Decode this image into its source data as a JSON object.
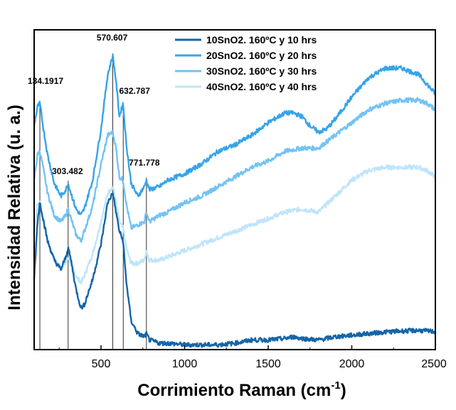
{
  "chart_data": {
    "type": "line",
    "title": "",
    "xlabel": "Corrimiento Raman (cm",
    "xlabel_sup": "-1",
    "xlabel_end": ")",
    "ylabel": "Intensidad Relativa (u. a.)",
    "xlim": [
      100,
      2500
    ],
    "ylim": [
      0,
      100
    ],
    "xticks": [
      500,
      1000,
      1500,
      2000,
      2500
    ],
    "xtick_labels": [
      "500",
      "1000",
      "1500",
      "2000",
      "2500"
    ],
    "yticks_shown": false,
    "grid": false,
    "legend_position": "top-right",
    "peak_lines": [
      134.1917,
      303.482,
      570.607,
      632.787,
      771.778
    ],
    "peak_labels": [
      {
        "text": "134.1917",
        "x": 134.1917
      },
      {
        "text": "303.482",
        "x": 303.482
      },
      {
        "text": "570.607",
        "x": 570.607
      },
      {
        "text": "632.787",
        "x": 632.787
      },
      {
        "text": "771.778",
        "x": 771.778
      }
    ],
    "series": [
      {
        "name": "10SnO2. 160ºC y 10 hrs",
        "color": "#1565a8",
        "x": [
          100,
          120,
          134,
          150,
          180,
          220,
          260,
          290,
          303,
          320,
          350,
          380,
          400,
          450,
          500,
          540,
          570,
          590,
          610,
          632,
          650,
          680,
          720,
          760,
          771,
          790,
          850,
          900,
          1000,
          1100,
          1200,
          1300,
          1400,
          1500,
          1600,
          1650,
          1700,
          1800,
          1900,
          2000,
          2100,
          2200,
          2300,
          2400,
          2500
        ],
        "y": [
          22,
          40,
          46,
          42,
          34,
          28,
          25,
          29,
          32,
          28,
          19,
          13,
          14,
          22,
          33,
          46,
          49,
          43,
          37,
          34,
          22,
          9,
          5,
          4,
          5,
          3,
          2,
          2,
          1.5,
          1.5,
          1.5,
          2,
          3,
          3,
          3.5,
          4,
          3.5,
          3,
          4,
          4.5,
          5,
          5.5,
          5.8,
          6,
          5.6
        ]
      },
      {
        "name": "20SnO2. 160ºC y 20 hrs",
        "color": "#36a4e8",
        "x": [
          100,
          120,
          134,
          150,
          180,
          220,
          260,
          290,
          303,
          320,
          350,
          380,
          400,
          450,
          500,
          540,
          570,
          590,
          610,
          632,
          650,
          680,
          720,
          760,
          771,
          790,
          850,
          900,
          1000,
          1100,
          1200,
          1300,
          1400,
          1500,
          1600,
          1650,
          1700,
          1750,
          1800,
          1850,
          1900,
          2000,
          2100,
          2200,
          2300,
          2400,
          2450,
          2500
        ],
        "y": [
          70,
          76,
          77,
          71,
          61,
          52,
          48,
          50,
          52,
          49,
          44,
          42,
          44,
          53,
          69,
          86,
          92,
          84,
          73,
          77,
          65,
          52,
          48,
          51,
          53,
          50,
          51,
          53,
          55,
          58,
          62,
          64,
          67,
          71,
          74,
          74,
          73,
          70,
          68,
          69,
          72,
          79,
          85,
          88,
          88,
          86,
          83,
          80
        ]
      },
      {
        "name": "30SnO2. 160ºC y 30 hrs",
        "color": "#72c3f4",
        "x": [
          100,
          120,
          134,
          150,
          180,
          220,
          260,
          290,
          303,
          320,
          350,
          380,
          400,
          450,
          500,
          540,
          570,
          590,
          610,
          632,
          650,
          680,
          720,
          760,
          771,
          790,
          850,
          900,
          1000,
          1100,
          1200,
          1300,
          1400,
          1500,
          1600,
          1700,
          1800,
          1900,
          2000,
          2100,
          2200,
          2300,
          2400,
          2450,
          2500
        ],
        "y": [
          53,
          61,
          62,
          58,
          49,
          42,
          40,
          42,
          44,
          41,
          36,
          34,
          37,
          45,
          58,
          67,
          68,
          63,
          54,
          53,
          46,
          38,
          39,
          40,
          43,
          40,
          42,
          43,
          46,
          48,
          51,
          54,
          57,
          59,
          62,
          63,
          63,
          67,
          71,
          75,
          77,
          78,
          78,
          77,
          75
        ]
      },
      {
        "name": "40SnO2. 160ºC y 40 hrs",
        "color": "#bfe5fb",
        "x": [
          100,
          120,
          134,
          150,
          180,
          220,
          260,
          290,
          303,
          320,
          350,
          380,
          400,
          450,
          500,
          540,
          570,
          590,
          610,
          632,
          650,
          680,
          720,
          760,
          771,
          790,
          850,
          900,
          1000,
          1100,
          1200,
          1300,
          1400,
          1500,
          1600,
          1700,
          1800,
          1900,
          2000,
          2100,
          2200,
          2300,
          2400,
          2450,
          2500
        ],
        "y": [
          37,
          45,
          46,
          42,
          34,
          28,
          26,
          27,
          29,
          27,
          23,
          21,
          23,
          30,
          40,
          49,
          51,
          46,
          40,
          38,
          32,
          27,
          27,
          28,
          31,
          28,
          28,
          29,
          31,
          33,
          35,
          37,
          39,
          41,
          43,
          44,
          43,
          48,
          53,
          56,
          57,
          57,
          57,
          56,
          54
        ]
      }
    ]
  }
}
